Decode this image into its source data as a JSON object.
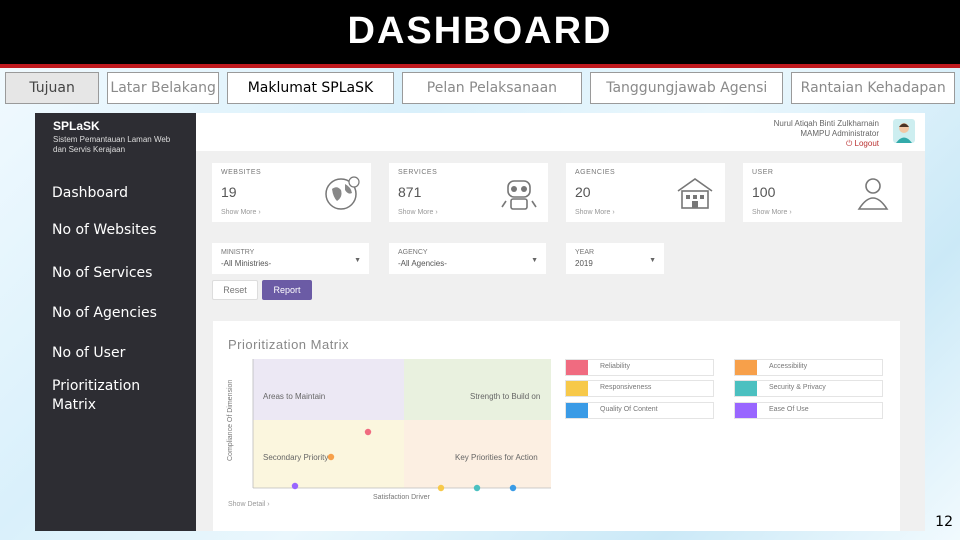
{
  "slide": {
    "title": "DASHBOARD",
    "page_number": "12",
    "tabs": [
      {
        "label": "Tujuan"
      },
      {
        "label": "Latar Belakang"
      },
      {
        "label": "Maklumat SPLaSK"
      },
      {
        "label": "Pelan Pelaksanaan"
      },
      {
        "label": "Tanggungjawab Agensi"
      },
      {
        "label": "Rantaian Kehadapan"
      }
    ]
  },
  "app": {
    "brand": "SPLaSK",
    "brand_subtitle": "Sistem Pemantauan Laman Web dan Servis Kerajaan",
    "user": {
      "name": "Nurul Atiqah Binti Zulkharnain",
      "role": "MAMPU Administrator",
      "logout": "Logout"
    },
    "sidebar": [
      {
        "label": "Dashboard"
      },
      {
        "label": "No of Websites"
      },
      {
        "label": "No of Services"
      },
      {
        "label": "No of Agencies"
      },
      {
        "label": "No of User"
      },
      {
        "label": "Prioritization Matrix"
      }
    ],
    "cards": [
      {
        "label": "WEBSITES",
        "value": "19",
        "more": "Show More  ›",
        "icon": "globe-icon"
      },
      {
        "label": "SERVICES",
        "value": "871",
        "more": "Show More  ›",
        "icon": "robot-icon"
      },
      {
        "label": "AGENCIES",
        "value": "20",
        "more": "Show More  ›",
        "icon": "building-icon"
      },
      {
        "label": "USER",
        "value": "100",
        "more": "Show More  ›",
        "icon": "user-icon"
      }
    ],
    "filters": [
      {
        "label": "MINISTRY",
        "value": "-All Ministries-"
      },
      {
        "label": "AGENCY",
        "value": "-All Agencies-"
      },
      {
        "label": "YEAR",
        "value": "2019"
      }
    ],
    "buttons": {
      "reset": "Reset",
      "report": "Report"
    },
    "matrix": {
      "title": "Prioritization Matrix",
      "quadrants": {
        "top_left": "Areas to Maintain",
        "top_right": "Strength to Build on",
        "bottom_left": "Secondary Priority",
        "bottom_right": "Key Priorities for Action"
      },
      "ylabel": "Compliance Of Dimension",
      "xlabel": "Satisfaction Driver",
      "show_detail": "Show Detail  ›",
      "legend": [
        {
          "label": "Reliability",
          "color": "#f06b80"
        },
        {
          "label": "Accessibility",
          "color": "#f7a04a"
        },
        {
          "label": "Responsiveness",
          "color": "#f7c94a"
        },
        {
          "label": "Security & Privacy",
          "color": "#4bc0c0"
        },
        {
          "label": "Quality Of Content",
          "color": "#3a9be6"
        },
        {
          "label": "Ease Of Use",
          "color": "#9966ff"
        }
      ]
    }
  }
}
